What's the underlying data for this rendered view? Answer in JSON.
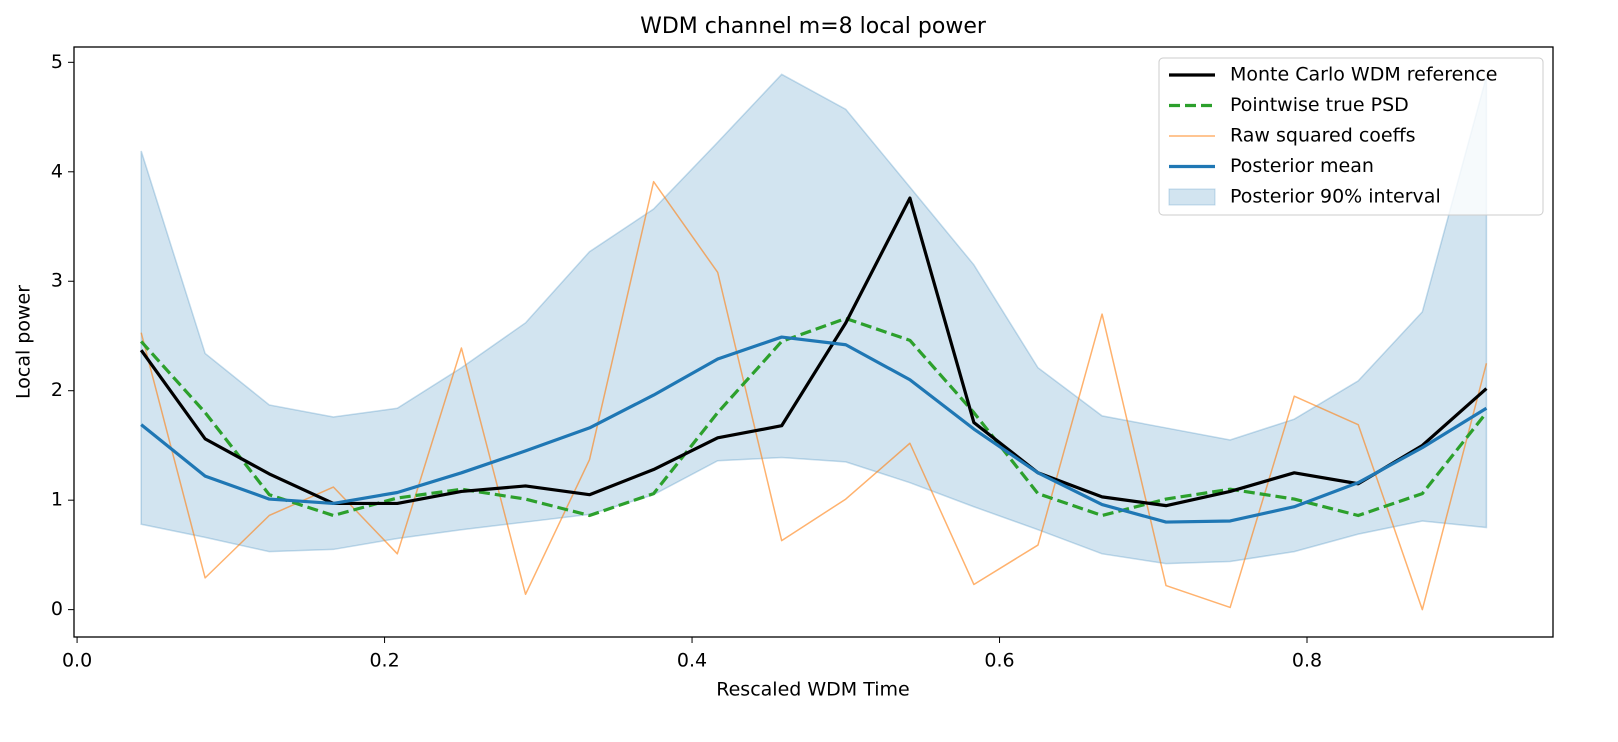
{
  "chart_data": {
    "type": "line",
    "title": "WDM channel m=8 local power",
    "xlabel": "Rescaled WDM Time",
    "ylabel": "Local power",
    "x": [
      0.0417,
      0.0833,
      0.125,
      0.1667,
      0.2083,
      0.25,
      0.2917,
      0.3333,
      0.375,
      0.4167,
      0.4583,
      0.5,
      0.5417,
      0.5833,
      0.625,
      0.6667,
      0.7083,
      0.75,
      0.7917,
      0.8333,
      0.875,
      0.9167
    ],
    "xlim": [
      -0.002,
      0.96
    ],
    "ylim": [
      -0.25,
      5.14
    ],
    "xticks": [
      {
        "value": 0,
        "label": "0.0"
      },
      0.2,
      0.4,
      0.6,
      0.8
    ],
    "yticks": [
      0,
      1,
      2,
      3,
      4,
      5
    ],
    "legend": "upper right",
    "band": {
      "name": "Posterior 90% interval",
      "color": "#1f77b4",
      "upper": [
        4.19,
        2.34,
        1.87,
        1.76,
        1.84,
        2.21,
        2.62,
        3.27,
        3.66,
        4.27,
        4.89,
        4.57,
        3.86,
        3.15,
        2.21,
        1.77,
        1.66,
        1.55,
        1.74,
        2.09,
        2.72,
        4.87
      ],
      "lower": [
        0.78,
        0.66,
        0.53,
        0.55,
        0.65,
        0.73,
        0.8,
        0.87,
        1.05,
        1.36,
        1.39,
        1.35,
        1.16,
        0.94,
        0.73,
        0.51,
        0.42,
        0.44,
        0.53,
        0.69,
        0.81,
        0.75
      ]
    },
    "series": [
      {
        "name": "Monte Carlo WDM reference",
        "color": "#000000",
        "values": [
          2.37,
          1.56,
          1.24,
          0.97,
          0.97,
          1.08,
          1.13,
          1.05,
          1.28,
          1.57,
          1.68,
          2.62,
          3.76,
          1.71,
          1.25,
          1.03,
          0.95,
          1.08,
          1.25,
          1.15,
          1.5,
          2.02
        ]
      },
      {
        "name": "Pointwise true PSD",
        "color": "#2ca02c",
        "dashed": true,
        "values": [
          2.45,
          1.8,
          1.05,
          0.86,
          1.02,
          1.1,
          1.01,
          0.86,
          1.06,
          1.8,
          2.45,
          2.66,
          2.46,
          1.8,
          1.06,
          0.86,
          1.01,
          1.1,
          1.01,
          0.86,
          1.06,
          1.8
        ]
      },
      {
        "name": "Raw squared coeffs",
        "color": "#ff7f0e",
        "thin": true,
        "values": [
          2.53,
          0.29,
          0.86,
          1.12,
          0.51,
          2.39,
          0.14,
          1.37,
          3.91,
          3.08,
          0.63,
          1.01,
          1.52,
          0.23,
          0.59,
          2.7,
          0.22,
          0.02,
          1.95,
          1.69,
          0,
          2.25
        ]
      },
      {
        "name": "Posterior mean",
        "color": "#1f77b4",
        "values": [
          1.69,
          1.22,
          1.01,
          0.97,
          1.07,
          1.25,
          1.45,
          1.66,
          1.96,
          2.29,
          2.49,
          2.42,
          2.1,
          1.65,
          1.25,
          0.96,
          0.8,
          0.81,
          0.94,
          1.16,
          1.48,
          1.84
        ]
      }
    ]
  }
}
